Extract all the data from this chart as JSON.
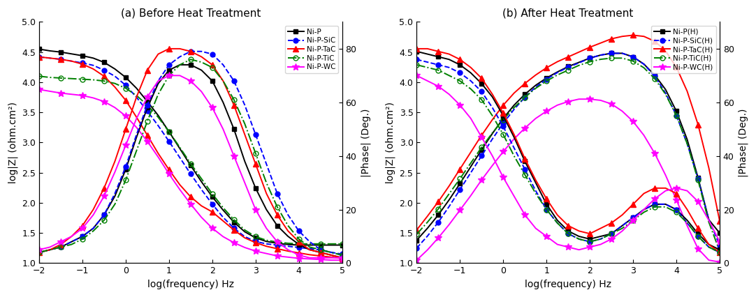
{
  "title_a": "(a) Before Heat Treatment",
  "title_b": "(b) After Heat Treatment",
  "xlabel": "log(frequency) Hz",
  "ylabel_left": "log|Z| (ohm.cm²)",
  "ylabel_right": "|Phase| (Deg.)",
  "freq": [
    -2,
    -1.75,
    -1.5,
    -1.25,
    -1.0,
    -0.75,
    -0.5,
    -0.25,
    0.0,
    0.25,
    0.5,
    0.75,
    1.0,
    1.25,
    1.5,
    1.75,
    2.0,
    2.25,
    2.5,
    2.75,
    3.0,
    3.25,
    3.5,
    3.75,
    4.0,
    4.25,
    4.5,
    4.75,
    5.0
  ],
  "a_Z": {
    "NiP": [
      4.55,
      4.52,
      4.5,
      4.47,
      4.44,
      4.4,
      4.33,
      4.22,
      4.08,
      3.9,
      3.68,
      3.45,
      3.18,
      2.9,
      2.62,
      2.35,
      2.1,
      1.88,
      1.68,
      1.52,
      1.42,
      1.36,
      1.33,
      1.31,
      1.3,
      1.3,
      1.3,
      1.3,
      1.3
    ],
    "NiPSiC": [
      4.42,
      4.4,
      4.38,
      4.35,
      4.32,
      4.28,
      4.2,
      4.1,
      3.95,
      3.75,
      3.52,
      3.28,
      3.02,
      2.75,
      2.48,
      2.22,
      1.98,
      1.76,
      1.58,
      1.44,
      1.36,
      1.32,
      1.3,
      1.28,
      1.26,
      1.24,
      1.22,
      1.18,
      1.15
    ],
    "NiPTaC": [
      4.42,
      4.4,
      4.38,
      4.35,
      4.3,
      4.22,
      4.1,
      3.92,
      3.7,
      3.42,
      3.12,
      2.82,
      2.55,
      2.3,
      2.1,
      1.95,
      1.85,
      1.7,
      1.55,
      1.42,
      1.34,
      1.28,
      1.24,
      1.2,
      1.17,
      1.14,
      1.12,
      1.1,
      1.08
    ],
    "NiPTiC": [
      4.1,
      4.08,
      4.07,
      4.06,
      4.05,
      4.04,
      4.02,
      3.98,
      3.9,
      3.78,
      3.62,
      3.42,
      3.18,
      2.92,
      2.65,
      2.4,
      2.15,
      1.92,
      1.72,
      1.55,
      1.44,
      1.38,
      1.35,
      1.33,
      1.32,
      1.32,
      1.32,
      1.32,
      1.32
    ],
    "NiPWC": [
      3.88,
      3.85,
      3.82,
      3.8,
      3.78,
      3.74,
      3.68,
      3.58,
      3.44,
      3.25,
      3.02,
      2.76,
      2.48,
      2.22,
      1.98,
      1.76,
      1.58,
      1.44,
      1.34,
      1.26,
      1.2,
      1.16,
      1.12,
      1.1,
      1.08,
      1.07,
      1.06,
      1.05,
      1.05
    ]
  },
  "a_Ph": {
    "NiP": [
      4,
      5,
      6,
      8,
      10,
      13,
      18,
      25,
      35,
      47,
      58,
      67,
      72,
      74,
      74,
      72,
      68,
      60,
      50,
      38,
      28,
      20,
      14,
      10,
      7,
      5,
      4,
      3,
      2
    ],
    "NiPSiC": [
      4,
      5,
      6,
      8,
      10,
      13,
      18,
      26,
      36,
      48,
      59,
      68,
      74,
      77,
      79,
      79,
      78,
      74,
      68,
      59,
      48,
      37,
      26,
      18,
      12,
      8,
      5,
      4,
      3
    ],
    "NiPTaC": [
      4,
      5,
      7,
      10,
      14,
      20,
      28,
      38,
      50,
      62,
      72,
      78,
      80,
      80,
      79,
      77,
      74,
      68,
      59,
      48,
      37,
      26,
      18,
      12,
      8,
      5,
      4,
      3,
      2
    ],
    "NiPTiC": [
      4,
      5,
      6,
      7,
      9,
      12,
      16,
      22,
      31,
      42,
      53,
      63,
      70,
      74,
      76,
      75,
      73,
      68,
      61,
      52,
      41,
      30,
      21,
      14,
      9,
      6,
      5,
      4,
      3
    ],
    "NiPWC": [
      5,
      6,
      8,
      10,
      13,
      18,
      25,
      34,
      44,
      54,
      62,
      68,
      70,
      70,
      68,
      64,
      58,
      50,
      40,
      30,
      20,
      13,
      8,
      5,
      3,
      2,
      2,
      2,
      2
    ]
  },
  "b_Z": {
    "NiPH": [
      1.38,
      1.58,
      1.8,
      2.05,
      2.32,
      2.6,
      2.88,
      3.15,
      3.4,
      3.62,
      3.8,
      3.95,
      4.07,
      4.17,
      4.26,
      4.33,
      4.4,
      4.45,
      4.48,
      4.48,
      4.42,
      4.3,
      4.12,
      3.88,
      3.52,
      3.05,
      2.42,
      1.72,
      1.5
    ],
    "NiPSiCH": [
      1.25,
      1.45,
      1.68,
      1.94,
      2.22,
      2.5,
      2.78,
      3.06,
      3.32,
      3.55,
      3.75,
      3.92,
      4.05,
      4.16,
      4.25,
      4.32,
      4.4,
      4.45,
      4.48,
      4.48,
      4.42,
      4.3,
      4.1,
      3.82,
      3.45,
      2.98,
      2.4,
      1.72,
      1.3
    ],
    "NiPTaCH": [
      1.55,
      1.78,
      2.02,
      2.28,
      2.56,
      2.84,
      3.12,
      3.38,
      3.62,
      3.82,
      3.98,
      4.12,
      4.24,
      4.34,
      4.42,
      4.5,
      4.58,
      4.65,
      4.72,
      4.76,
      4.78,
      4.76,
      4.68,
      4.52,
      4.25,
      3.85,
      3.3,
      2.58,
      1.7
    ],
    "NiPTiCH": [
      1.48,
      1.68,
      1.9,
      2.15,
      2.4,
      2.66,
      2.92,
      3.16,
      3.38,
      3.58,
      3.75,
      3.9,
      4.02,
      4.12,
      4.2,
      4.28,
      4.34,
      4.38,
      4.4,
      4.4,
      4.35,
      4.24,
      4.06,
      3.8,
      3.45,
      2.98,
      2.38,
      1.68,
      1.2
    ],
    "NiPWCH": [
      1.05,
      1.22,
      1.42,
      1.64,
      1.88,
      2.12,
      2.38,
      2.62,
      2.85,
      3.06,
      3.24,
      3.4,
      3.52,
      3.62,
      3.68,
      3.72,
      3.72,
      3.7,
      3.64,
      3.52,
      3.35,
      3.12,
      2.82,
      2.46,
      2.05,
      1.62,
      1.24,
      1.05,
      1.02
    ]
  },
  "b_Ph": {
    "NiPH": [
      79,
      78,
      77,
      76,
      74,
      71,
      67,
      62,
      55,
      47,
      38,
      30,
      22,
      16,
      12,
      10,
      9,
      10,
      11,
      14,
      17,
      20,
      22,
      22,
      20,
      16,
      11,
      7,
      5
    ],
    "NiPSiCH": [
      76,
      75,
      74,
      73,
      71,
      68,
      64,
      58,
      51,
      43,
      35,
      27,
      20,
      15,
      11,
      9,
      8,
      9,
      11,
      14,
      17,
      20,
      22,
      22,
      20,
      15,
      10,
      6,
      4
    ],
    "NiPTaCH": [
      80,
      80,
      79,
      78,
      76,
      73,
      69,
      63,
      56,
      48,
      39,
      31,
      24,
      18,
      14,
      12,
      11,
      13,
      15,
      18,
      22,
      26,
      28,
      28,
      26,
      20,
      13,
      7,
      4
    ],
    "NiPTiCH": [
      74,
      73,
      72,
      70,
      68,
      65,
      61,
      55,
      48,
      40,
      33,
      26,
      20,
      15,
      11,
      9,
      8,
      9,
      11,
      13,
      16,
      19,
      21,
      21,
      19,
      15,
      10,
      6,
      4
    ],
    "NiPWCH": [
      70,
      68,
      66,
      63,
      59,
      54,
      47,
      40,
      32,
      25,
      18,
      13,
      10,
      7,
      6,
      5,
      6,
      7,
      9,
      12,
      16,
      20,
      24,
      27,
      28,
      27,
      23,
      16,
      8
    ]
  },
  "legend_a": [
    "Ni-P",
    "Ni-P-SiC",
    "Ni-P-TaC",
    "Ni-P-TiC",
    "Ni-P-WC"
  ],
  "legend_b": [
    "Ni-P(H)",
    "Ni-P-SiC(H)",
    "Ni-P-TaC(H)",
    "Ni-P-TiC(H)",
    "Ni-P-WC(H)"
  ],
  "colors": [
    "black",
    "blue",
    "red",
    "green",
    "magenta"
  ],
  "ms": [
    5,
    5,
    6,
    5,
    7
  ],
  "markers": [
    "s",
    "o",
    "^",
    "o",
    "*"
  ],
  "ls_Z": [
    "-",
    "--",
    "-",
    "-.",
    "-"
  ],
  "ls_Ph": [
    "-",
    "--",
    "-",
    "-.",
    "-"
  ],
  "mfc": [
    "black",
    "blue",
    "red",
    "none",
    "magenta"
  ]
}
